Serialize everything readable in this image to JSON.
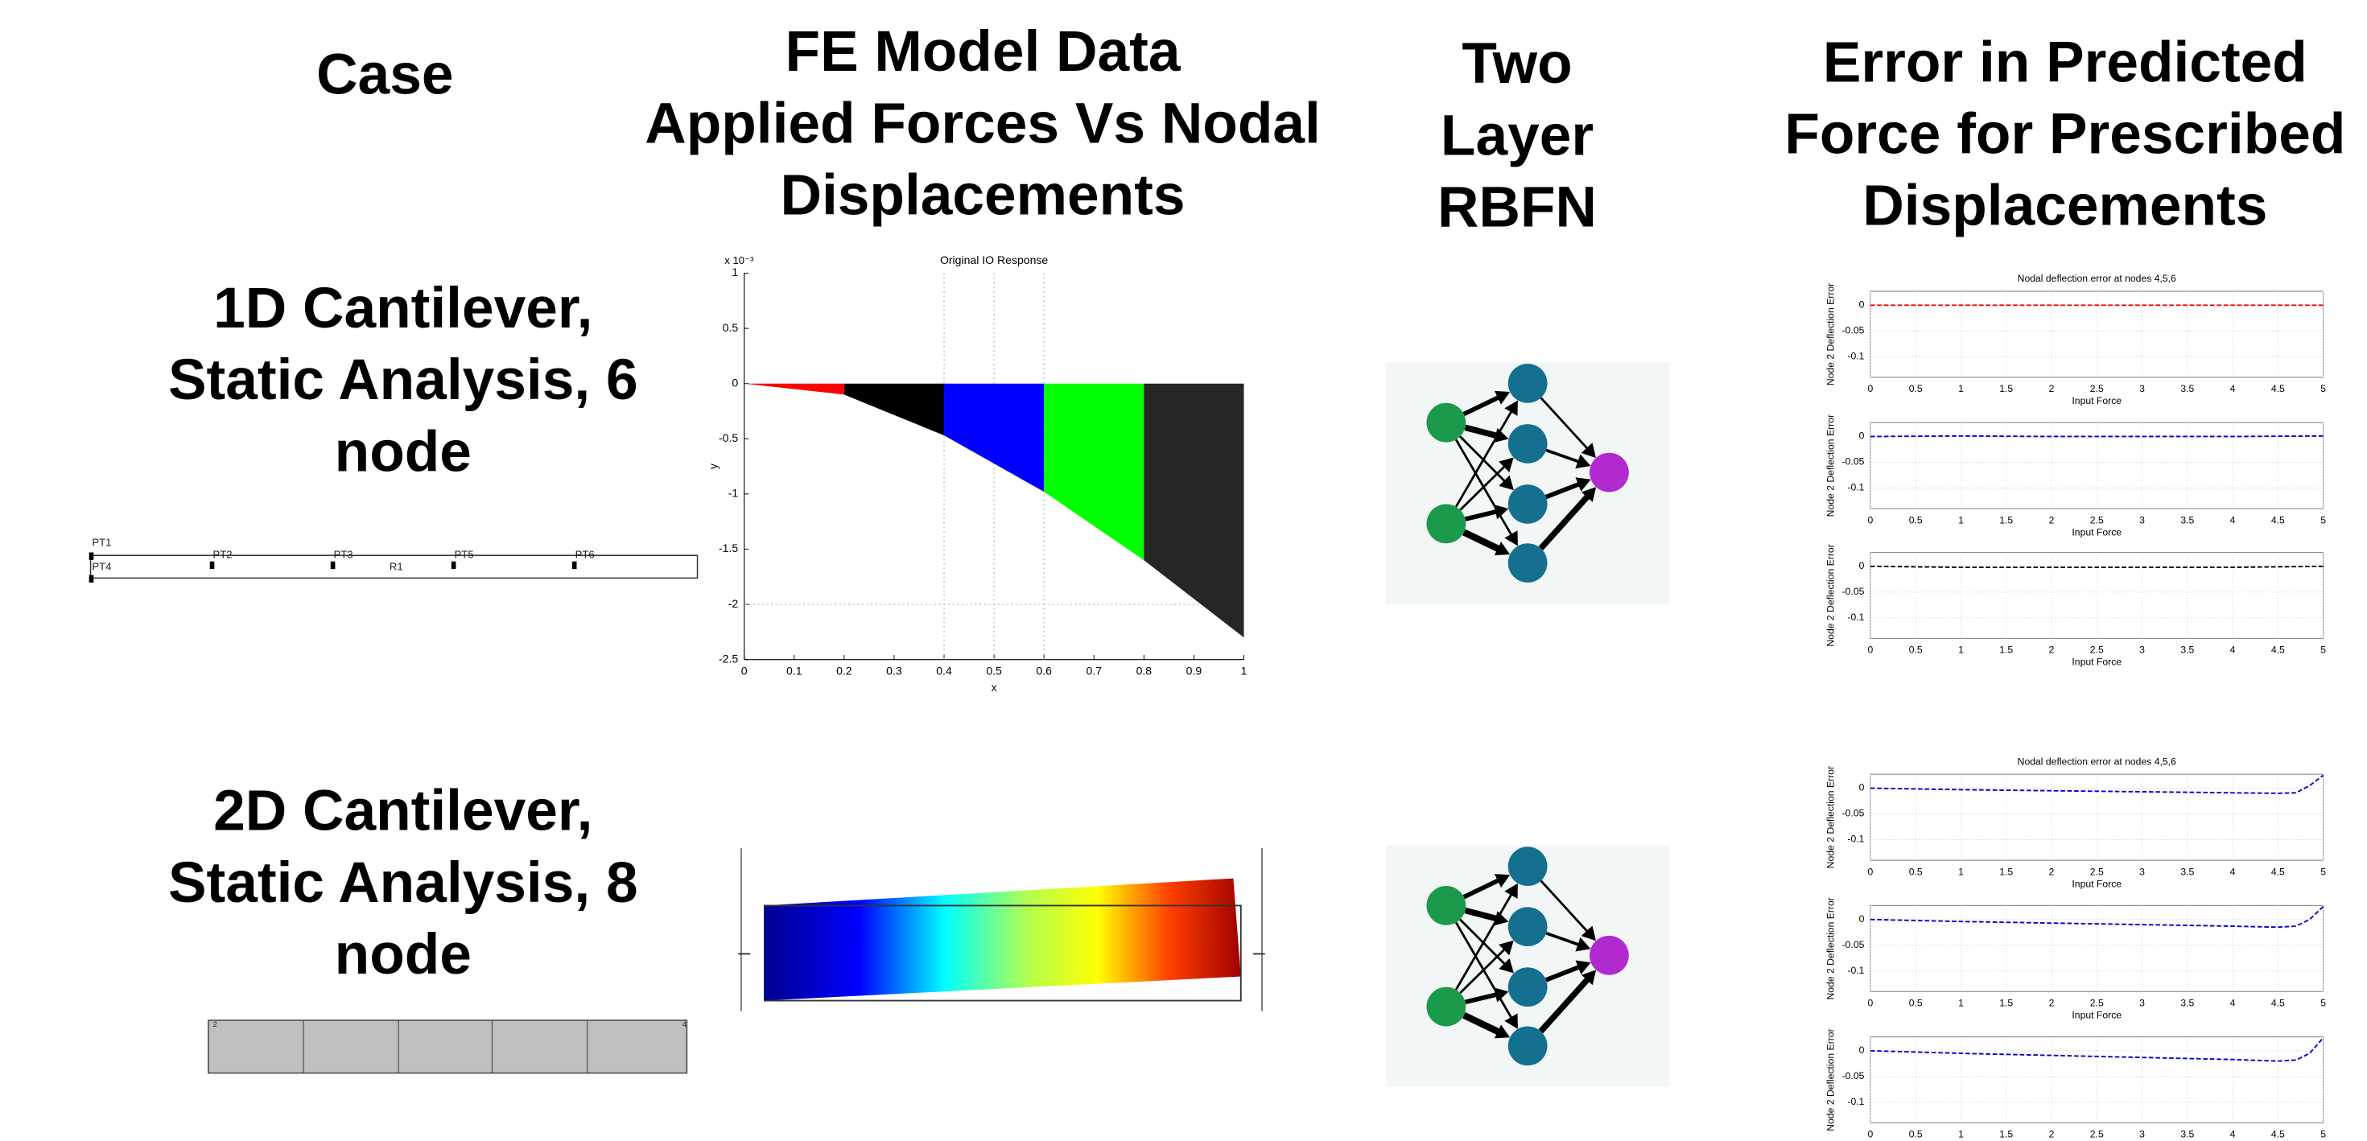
{
  "headers": [
    {
      "lines": [
        "Case"
      ]
    },
    {
      "lines": [
        "FE Model Data",
        "Applied Forces Vs Nodal",
        "Displacements"
      ]
    },
    {
      "lines": [
        "Two",
        "Layer",
        "RBFN"
      ]
    },
    {
      "lines": [
        "Error in Predicted",
        "Force for Prescribed",
        "Displacements"
      ]
    }
  ],
  "cases": [
    {
      "lines": [
        "1D Cantilever,",
        "Static Analysis, 6",
        "node"
      ]
    },
    {
      "lines": [
        "2D Cantilever,",
        "Static Analysis, 8",
        "node"
      ]
    }
  ],
  "beam_labels": [
    "PT1",
    "PT2",
    "PT3",
    "PT5",
    "PT6",
    "PT4",
    "R1"
  ],
  "mesh_labels": [
    "2",
    "4"
  ],
  "chart_data": [
    {
      "type": "area",
      "title": "Original IO Response",
      "exponent": "x 10⁻³",
      "xlabel": "x",
      "ylabel": "y",
      "xlim": [
        0,
        1
      ],
      "ylim": [
        -2.5,
        1
      ],
      "xticks": [
        0,
        0.1,
        0.2,
        0.3,
        0.4,
        0.5,
        0.6,
        0.7,
        0.8,
        0.9,
        1
      ],
      "yticks": [
        1,
        0.5,
        0,
        -0.5,
        -1,
        -1.5,
        -2,
        -2.5
      ],
      "vlines": [
        0.4,
        0.5,
        0.6
      ],
      "hlines": [
        -2
      ],
      "series": [
        {
          "color": "#ff0000",
          "x": [
            0,
            0.2
          ],
          "values": [
            0,
            -0.1
          ]
        },
        {
          "color": "#000000",
          "x": [
            0.2,
            0.4
          ],
          "values": [
            -0.1,
            -0.47
          ]
        },
        {
          "color": "#0000ff",
          "x": [
            0.4,
            0.6
          ],
          "values": [
            -0.47,
            -0.98
          ]
        },
        {
          "color": "#00ff00",
          "x": [
            0.6,
            0.8
          ],
          "values": [
            -0.98,
            -1.6
          ]
        },
        {
          "color": "#000000",
          "x": [
            0.8,
            1
          ],
          "values": [
            -1.6,
            -2.3
          ]
        }
      ]
    },
    {
      "type": "line",
      "title": "Nodal deflection error at nodes 4,5,6",
      "xlabel": "Input Force",
      "ylabel": "Node 2 Deflection Error",
      "xlim": [
        0,
        5
      ],
      "ylim": [
        -0.14,
        0.027
      ],
      "xticks": [
        0,
        0.5,
        1,
        1.5,
        2,
        2.5,
        3,
        3.5,
        4,
        4.5,
        5
      ],
      "yticks": [
        0,
        -0.05,
        -0.1
      ],
      "grid": true,
      "x": [
        0,
        1,
        2,
        3,
        4,
        5
      ],
      "series": [
        {
          "color": "#ff0000",
          "values": [
            0,
            0,
            0,
            0,
            0,
            0
          ]
        }
      ]
    },
    {
      "type": "line",
      "xlabel": "Input Force",
      "ylabel": "Node 2 Deflection Error",
      "xlim": [
        0,
        5
      ],
      "ylim": [
        -0.14,
        0.027
      ],
      "xticks": [
        0,
        0.5,
        1,
        1.5,
        2,
        2.5,
        3,
        3.5,
        4,
        4.5,
        5
      ],
      "yticks": [
        0,
        -0.05,
        -0.1
      ],
      "grid": true,
      "x": [
        0,
        1,
        2,
        3,
        4,
        5
      ],
      "series": [
        {
          "color": "#0000cc",
          "values": [
            0,
            0.001,
            0,
            0,
            0,
            0.001
          ]
        }
      ]
    },
    {
      "type": "line",
      "xlabel": "Input Force",
      "ylabel": "Node 2 Deflection Error",
      "xlim": [
        0,
        5
      ],
      "ylim": [
        -0.14,
        0.027
      ],
      "xticks": [
        0,
        0.5,
        1,
        1.5,
        2,
        2.5,
        3,
        3.5,
        4,
        4.5,
        5
      ],
      "yticks": [
        0,
        -0.05,
        -0.1
      ],
      "grid": true,
      "x": [
        0,
        1,
        2,
        3,
        4,
        5
      ],
      "series": [
        {
          "color": "#000000",
          "values": [
            0,
            -0.002,
            -0.002,
            -0.002,
            -0.002,
            0
          ]
        }
      ]
    },
    {
      "type": "line",
      "title": "Nodal deflection error at nodes 4,5,6",
      "xlabel": "Input Force",
      "ylabel": "Node 2 Deflection Error",
      "xlim": [
        0,
        5
      ],
      "ylim": [
        -0.14,
        0.027
      ],
      "xticks": [
        0,
        0.5,
        1,
        1.5,
        2,
        2.5,
        3,
        3.5,
        4,
        4.5,
        5
      ],
      "yticks": [
        0,
        -0.05,
        -0.1
      ],
      "grid": true,
      "x": [
        0,
        1,
        2,
        3,
        4,
        4.5,
        4.7,
        4.85,
        5
      ],
      "series": [
        {
          "color": "#0000cc",
          "values": [
            0,
            -0.003,
            -0.005,
            -0.007,
            -0.009,
            -0.01,
            -0.009,
            0.005,
            0.025
          ]
        }
      ]
    },
    {
      "type": "line",
      "xlabel": "Input Force",
      "ylabel": "Node 2 Deflection Error",
      "xlim": [
        0,
        5
      ],
      "ylim": [
        -0.14,
        0.027
      ],
      "xticks": [
        0,
        0.5,
        1,
        1.5,
        2,
        2.5,
        3,
        3.5,
        4,
        4.5,
        5
      ],
      "yticks": [
        0,
        -0.05,
        -0.1
      ],
      "grid": true,
      "x": [
        0,
        1,
        2,
        3,
        4,
        4.5,
        4.7,
        4.85,
        5
      ],
      "series": [
        {
          "color": "#0000cc",
          "values": [
            0,
            -0.004,
            -0.007,
            -0.01,
            -0.013,
            -0.015,
            -0.013,
            0,
            0.025
          ]
        }
      ]
    },
    {
      "type": "line",
      "ylabel": "Node 2 Deflection Error",
      "xlim": [
        0,
        5
      ],
      "ylim": [
        -0.14,
        0.027
      ],
      "xticks": [
        0,
        0.5,
        1,
        1.5,
        2,
        2.5,
        3,
        3.5,
        4,
        4.5,
        5
      ],
      "yticks": [
        0,
        -0.05,
        -0.1
      ],
      "grid": true,
      "x": [
        0,
        1,
        2,
        3,
        4,
        4.5,
        4.7,
        4.85,
        5
      ],
      "series": [
        {
          "color": "#0000cc",
          "values": [
            0,
            -0.005,
            -0.009,
            -0.013,
            -0.017,
            -0.02,
            -0.018,
            -0.005,
            0.025
          ]
        }
      ]
    }
  ]
}
